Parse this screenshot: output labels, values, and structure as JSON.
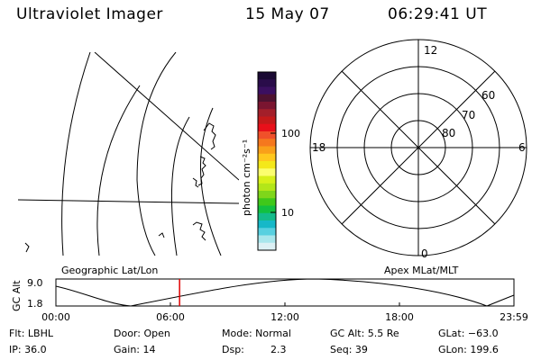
{
  "header": {
    "title": "Ultraviolet Imager",
    "date": "15 May 07",
    "time": "06:29:41 UT"
  },
  "colorbar": {
    "unit_label": "photon cm⁻²s⁻¹",
    "ticks": [
      "100",
      "10"
    ],
    "colors": [
      "#1a0a33",
      "#2a0c4a",
      "#3b0f60",
      "#4e1230",
      "#7a1530",
      "#a31f2a",
      "#c41a1a",
      "#e8101a",
      "#f0502a",
      "#f5781e",
      "#f9a01a",
      "#ffc81e",
      "#f4e81a",
      "#fcfe6e",
      "#d8f01a",
      "#b3e619",
      "#7fd61a",
      "#3fc81a",
      "#12c040",
      "#14bc8a",
      "#16b8c8",
      "#58d0e0",
      "#a8e6ec",
      "#dcf0f4"
    ]
  },
  "geo_map": {
    "label": "Geographic Lat/Lon"
  },
  "polar_plot": {
    "label": "Apex MLat/MLT",
    "hour_labels": {
      "top": "12",
      "left": "18",
      "right": "6",
      "bottom": "0"
    },
    "lat_labels": [
      "60",
      "70",
      "80"
    ]
  },
  "altitude_plot": {
    "y_label": "GC Alt",
    "y_max": "9.0",
    "y_min": "1.8",
    "x_ticks": [
      "00:00",
      "06:00",
      "12:00",
      "18:00",
      "23:59"
    ],
    "current_time_fraction": 0.27
  },
  "info": {
    "filt": "Flt: LBHL",
    "door": "Door: Open",
    "mode": "Mode: Normal",
    "gc_alt": "GC Alt: 5.5 Re",
    "glat": "GLat: −63.0",
    "ip": "IP: 36.0",
    "gain": "Gain: 14",
    "dsp_label": "Dsp:",
    "dsp_value": "2.3",
    "seq": "Seq: 39",
    "glon": "GLon: 199.6"
  }
}
